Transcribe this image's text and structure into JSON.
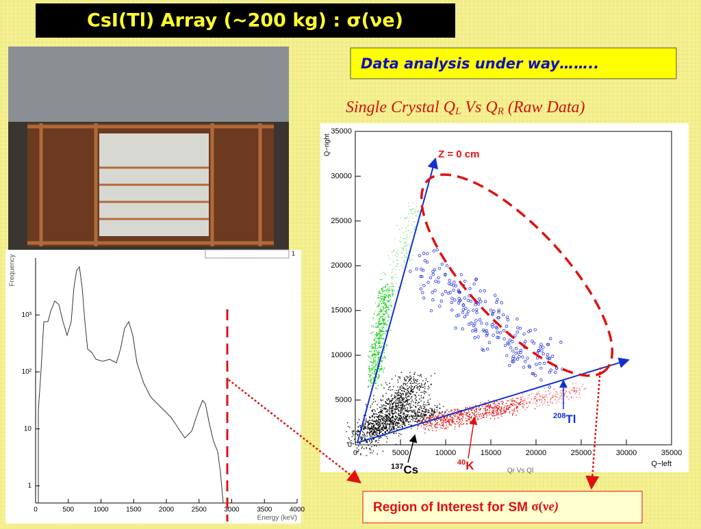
{
  "title": "CsI(Tl) Array (~200 kg) : σ(νe)",
  "note": "Data analysis under way……..",
  "subtitle": {
    "a": "Single Crystal  Q",
    "b": "L",
    "c": " Vs Q",
    "d": "R",
    "e": " (Raw Data)"
  },
  "scatter_plot": {
    "x_label": "Q−left",
    "y_label": "Q−right",
    "plot_title": "Qr Vs Ql",
    "xlim": [
      0,
      35000
    ],
    "ylim": [
      0,
      35000
    ],
    "xticks": [
      0,
      5000,
      10000,
      15000,
      20000,
      25000,
      30000,
      35000
    ],
    "yticks": [
      0,
      5000,
      10000,
      15000,
      20000,
      25000,
      30000,
      35000
    ]
  },
  "histogram": {
    "x_label": "Energy (keV)",
    "y_label": "Frequency",
    "corner": "1",
    "log_scale": true,
    "xlim": [
      0,
      4000
    ],
    "ylim": [
      0.5,
      10000
    ],
    "xticks": [
      0,
      500,
      1000,
      1500,
      2000,
      2500,
      3000,
      3500,
      4000
    ],
    "yticks": [
      1,
      10,
      {
        "value": 100,
        "label": "10²"
      },
      {
        "value": 1000,
        "label": "10³"
      }
    ]
  },
  "annotations": {
    "z0": "Z = 0 cm",
    "tl": {
      "mass": "208",
      "symbol": "Tl"
    },
    "k": {
      "mass": "40",
      "symbol": "K"
    },
    "cs": {
      "mass": "137",
      "symbol": "Cs"
    },
    "roi": {
      "text": "Region of Interest for SM ",
      "symbol": "σ(ν",
      "e": "e",
      "close": ")"
    }
  }
}
